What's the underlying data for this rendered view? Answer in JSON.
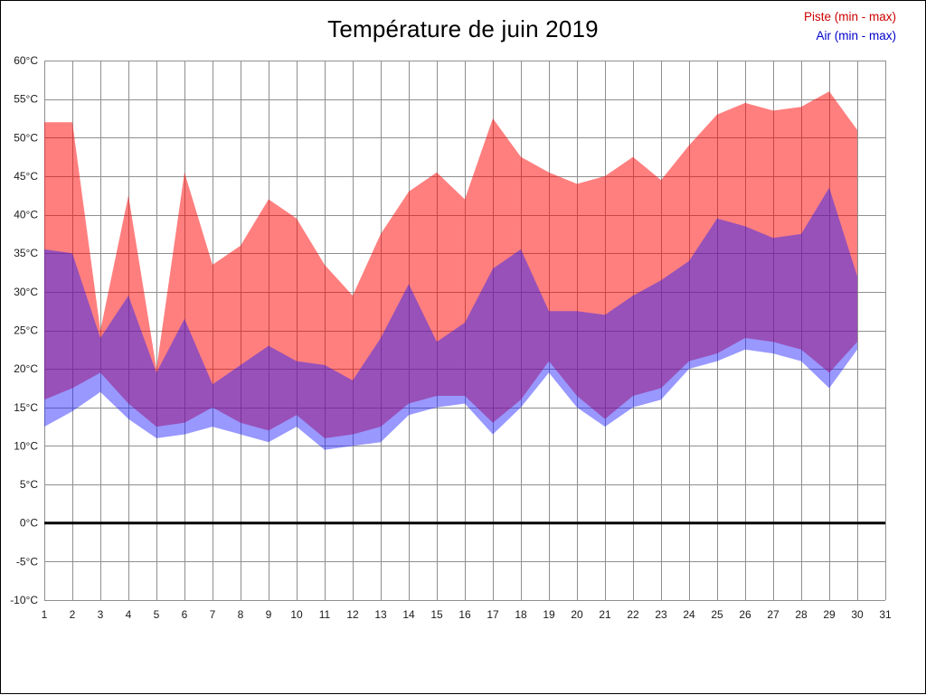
{
  "page": {
    "title": "Température de juin 2019"
  },
  "legend": [
    {
      "id": "piste",
      "label": "Piste (min - max)",
      "color": "#cc0000"
    },
    {
      "id": "air",
      "label": "Air (min - max)",
      "color": "#0000cc"
    }
  ],
  "chart_data": {
    "type": "area",
    "title": "Température de juin 2019",
    "xlabel": "",
    "ylabel": "",
    "grid": true,
    "zero_line": true,
    "legend_position": "top-right",
    "x": [
      1,
      2,
      3,
      4,
      5,
      6,
      7,
      8,
      9,
      10,
      11,
      12,
      13,
      14,
      15,
      16,
      17,
      18,
      19,
      20,
      21,
      22,
      23,
      24,
      25,
      26,
      27,
      28,
      29,
      30
    ],
    "x_axis": {
      "min": 1,
      "max": 31,
      "tick_labels": [
        "1",
        "2",
        "3",
        "4",
        "5",
        "6",
        "7",
        "8",
        "9",
        "10",
        "11",
        "12",
        "13",
        "14",
        "15",
        "16",
        "17",
        "18",
        "19",
        "20",
        "21",
        "22",
        "23",
        "24",
        "25",
        "26",
        "27",
        "28",
        "29",
        "30",
        "31"
      ]
    },
    "y_axis": {
      "min": -10,
      "max": 60,
      "step": 5,
      "tick_labels": [
        "60°C",
        "55°C",
        "50°C",
        "45°C",
        "40°C",
        "35°C",
        "30°C",
        "25°C",
        "20°C",
        "15°C",
        "10°C",
        "5°C",
        "0°C",
        "-5°C",
        "-10°C"
      ]
    },
    "series": [
      {
        "id": "piste",
        "name": "Piste (min - max)",
        "fill": "#ff0000",
        "fill_opacity": 0.5,
        "max": [
          52,
          52,
          25,
          42.5,
          20,
          45.5,
          33.5,
          36,
          42,
          39.5,
          33.5,
          29.5,
          37.5,
          43,
          45.5,
          42,
          52.5,
          47.5,
          45.5,
          44,
          45,
          47.5,
          44.5,
          49,
          53,
          54.5,
          53.5,
          54,
          56,
          51
        ],
        "min": [
          16,
          17.5,
          19.5,
          15.5,
          12.5,
          13,
          15,
          13,
          12,
          14,
          11,
          11.5,
          12.5,
          15.5,
          16.5,
          16.5,
          13,
          16,
          21,
          16.5,
          13.5,
          16.5,
          17.5,
          21,
          22,
          24,
          23.5,
          22.5,
          19.5,
          23.5
        ]
      },
      {
        "id": "air",
        "name": "Air (min - max)",
        "fill": "#1a1aff",
        "fill_opacity": 0.45,
        "max": [
          35.5,
          35,
          24,
          29.5,
          19.5,
          26.5,
          18,
          20.5,
          23,
          21,
          20.5,
          18.5,
          24,
          31,
          23.5,
          26,
          33,
          35.5,
          27.5,
          27.5,
          27,
          29.5,
          31.5,
          34,
          39.5,
          38.5,
          37,
          37.5,
          43.5,
          32
        ],
        "min": [
          12.5,
          14.5,
          17,
          13.5,
          11,
          11.5,
          12.5,
          11.5,
          10.5,
          12.5,
          9.5,
          10,
          10.5,
          14,
          15,
          15.5,
          11.5,
          15,
          19.5,
          15,
          12.5,
          15,
          16,
          20,
          21,
          22.5,
          22,
          21,
          17.5,
          22.5
        ]
      }
    ]
  }
}
